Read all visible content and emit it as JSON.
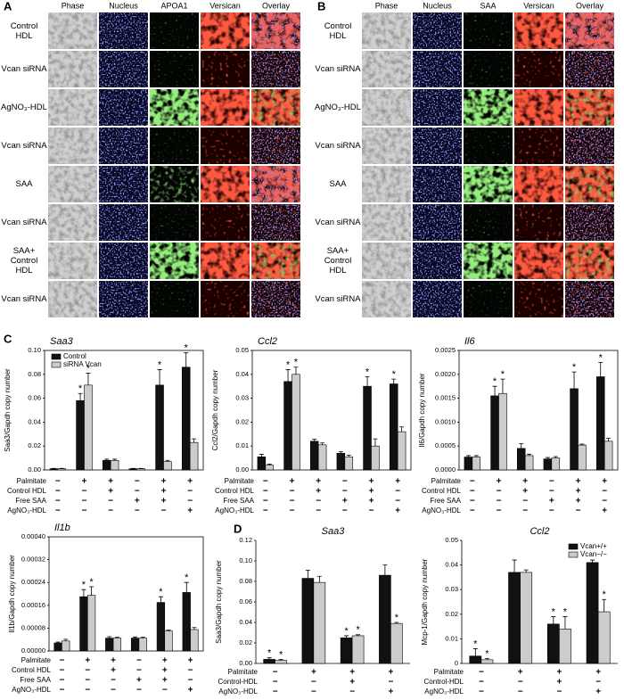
{
  "panels": [
    {
      "label": "A",
      "columns": [
        "Phase",
        "Nucleus",
        "APOA1",
        "Versican",
        "Overlay"
      ],
      "rows": [
        "Control HDL",
        "Vcan siRNA",
        "AgNO₃-HDL",
        "Vcan siRNA",
        "SAA",
        "Vcan siRNA",
        "SAA+ Control HDL",
        "Vcan siRNA"
      ]
    },
    {
      "label": "B",
      "columns": [
        "Phase",
        "Nucleus",
        "SAA",
        "Versican",
        "Overlay"
      ],
      "rows": [
        "Control HDL",
        "Vcan siRNA",
        "AgNO₃-HDL",
        "Vcan siRNA",
        "SAA",
        "Vcan siRNA",
        "SAA+ Control HDL",
        "Vcan siRNA"
      ]
    }
  ],
  "chart_data": [
    {
      "type": "bar",
      "panel": "C",
      "title": "Saa3",
      "ylabel": "Saa3/Gapdh copy number",
      "ylim": [
        0,
        0.1
      ],
      "yticks": [
        {
          "value": 0,
          "label": "0.00"
        },
        0.02,
        0.04,
        0.06,
        0.08,
        {
          "value": 0.1,
          "label": "0.10"
        }
      ],
      "legend": "upper-left",
      "series": [
        {
          "name": "Control",
          "color": "#111111",
          "values": [
            0.001,
            0.058,
            0.008,
            0.001,
            0.071,
            0.086
          ],
          "errors": [
            0.0003,
            0.006,
            0.001,
            0.0003,
            0.013,
            0.012
          ],
          "significance": [
            null,
            "*",
            null,
            null,
            "*",
            "*"
          ]
        },
        {
          "name": "siRNA Vcan",
          "color": "#cccccc",
          "values": [
            0.001,
            0.071,
            0.008,
            0.001,
            0.007,
            0.023
          ],
          "errors": [
            0.0003,
            0.01,
            0.001,
            0.0003,
            0.001,
            0.003
          ],
          "significance": [
            null,
            "*",
            null,
            null,
            null,
            null
          ]
        }
      ],
      "conditions": [
        {
          "name": "Palmitate",
          "marks": [
            "−",
            "+",
            "+",
            "−",
            "+",
            "+"
          ]
        },
        {
          "name": "Control HDL",
          "marks": [
            "−",
            "−",
            "+",
            "−",
            "+",
            "−"
          ]
        },
        {
          "name": "Free SAA",
          "marks": [
            "−",
            "−",
            "−",
            "+",
            "+",
            "−"
          ]
        },
        {
          "name": "AgNO₃-HDL",
          "marks": [
            "−",
            "−",
            "−",
            "−",
            "−",
            "+"
          ]
        }
      ]
    },
    {
      "type": "bar",
      "title": "Ccl2",
      "ylabel": "Ccl2/Gapdh copy number",
      "ylim": [
        0,
        0.05
      ],
      "yticks": [
        {
          "value": 0,
          "label": "0.00"
        },
        0.01,
        0.02,
        0.03,
        0.04,
        0.05
      ],
      "series": [
        {
          "name": "Control",
          "color": "#111111",
          "values": [
            0.0055,
            0.037,
            0.012,
            0.007,
            0.035,
            0.036
          ],
          "errors": [
            0.001,
            0.005,
            0.0008,
            0.0006,
            0.004,
            0.002
          ],
          "significance": [
            null,
            "*",
            null,
            null,
            "*",
            "*"
          ]
        },
        {
          "name": "siRNA Vcan",
          "color": "#cccccc",
          "values": [
            0.002,
            0.04,
            0.0105,
            0.0055,
            0.01,
            0.016
          ],
          "errors": [
            0.0004,
            0.003,
            0.0008,
            0.0007,
            0.003,
            0.002
          ],
          "significance": [
            null,
            "*",
            null,
            null,
            null,
            null
          ]
        }
      ],
      "conditions": [
        {
          "name": "Palmitate",
          "marks": [
            "−",
            "+",
            "+",
            "−",
            "+",
            "+"
          ]
        },
        {
          "name": "Control HDL",
          "marks": [
            "−",
            "−",
            "+",
            "−",
            "+",
            "−"
          ]
        },
        {
          "name": "Free SAA",
          "marks": [
            "−",
            "−",
            "−",
            "+",
            "+",
            "−"
          ]
        },
        {
          "name": "AgNO₃-HDL",
          "marks": [
            "−",
            "−",
            "−",
            "−",
            "−",
            "+"
          ]
        }
      ]
    },
    {
      "type": "bar",
      "title": "Il6",
      "ylabel": "Il6/Gapdh copy number",
      "ylim": [
        0,
        0.0025
      ],
      "yticks": [
        {
          "value": 0,
          "label": "0.0000"
        },
        0.0005,
        {
          "value": 0.001,
          "label": "0.0010"
        },
        0.0015,
        {
          "value": 0.002,
          "label": "0.0020"
        },
        0.0025
      ],
      "series": [
        {
          "name": "Control",
          "color": "#111111",
          "values": [
            0.00027,
            0.00155,
            0.00045,
            0.00023,
            0.0017,
            0.00195
          ],
          "errors": [
            3e-05,
            0.0002,
            0.0001,
            3e-05,
            0.00035,
            0.0003
          ],
          "significance": [
            null,
            "*",
            null,
            null,
            "*",
            "*"
          ]
        },
        {
          "name": "siRNA Vcan",
          "color": "#cccccc",
          "values": [
            0.00027,
            0.0016,
            0.0003,
            0.00025,
            0.00052,
            0.0006
          ],
          "errors": [
            3e-05,
            0.0003,
            3e-05,
            3e-05,
            2e-05,
            6e-05
          ],
          "significance": [
            null,
            "*",
            null,
            null,
            null,
            null
          ]
        }
      ],
      "conditions": [
        {
          "name": "Palmitate",
          "marks": [
            "−",
            "+",
            "+",
            "−",
            "+",
            "+"
          ]
        },
        {
          "name": "Control HDL",
          "marks": [
            "−",
            "−",
            "+",
            "−",
            "+",
            "−"
          ]
        },
        {
          "name": "Free SAA",
          "marks": [
            "−",
            "−",
            "−",
            "+",
            "+",
            "−"
          ]
        },
        {
          "name": "AgNO₃-HDL",
          "marks": [
            "−",
            "−",
            "−",
            "−",
            "−",
            "+"
          ]
        }
      ]
    },
    {
      "type": "bar",
      "title": "Il1b",
      "ylabel": "Il1b/Gapdh copy number",
      "ylim": [
        0,
        0.0004
      ],
      "yticks": [
        {
          "value": 0,
          "label": "0.00000"
        },
        8e-05,
        0.00016,
        0.00024,
        0.00032,
        {
          "value": 0.0004,
          "label": "0.00040"
        }
      ],
      "series": [
        {
          "name": "Control",
          "color": "#111111",
          "values": [
            2.8e-05,
            0.00019,
            4.5e-05,
            4.5e-05,
            0.00017,
            0.000205
          ],
          "errors": [
            3e-06,
            2.5e-05,
            5e-06,
            4e-06,
            2e-05,
            3.5e-05
          ],
          "significance": [
            null,
            "*",
            null,
            null,
            "*",
            "*"
          ]
        },
        {
          "name": "siRNA Vcan",
          "color": "#cccccc",
          "values": [
            3.5e-05,
            0.000195,
            4.5e-05,
            4.5e-05,
            7e-05,
            7.5e-05
          ],
          "errors": [
            6e-06,
            3e-05,
            3e-06,
            3e-06,
            3e-06,
            7e-06
          ],
          "significance": [
            null,
            "*",
            null,
            null,
            null,
            null
          ]
        }
      ],
      "conditions": [
        {
          "name": "Palmitate",
          "marks": [
            "−",
            "+",
            "+",
            "−",
            "+",
            "+"
          ]
        },
        {
          "name": "Control HDL",
          "marks": [
            "−",
            "−",
            "+",
            "−",
            "+",
            "−"
          ]
        },
        {
          "name": "Free SAA",
          "marks": [
            "−",
            "−",
            "−",
            "+",
            "+",
            "−"
          ]
        },
        {
          "name": "AgNO₃-HDL",
          "marks": [
            "−",
            "−",
            "−",
            "−",
            "−",
            "+"
          ]
        }
      ]
    },
    {
      "type": "bar",
      "panel": "D",
      "title": "Saa3",
      "ylabel": "Saa3/Gapdh copy number",
      "ylim": [
        0,
        0.12
      ],
      "yticks": [
        {
          "value": 0,
          "label": "0.00"
        },
        0.02,
        0.04,
        0.06,
        0.08,
        {
          "value": 0.1,
          "label": "0.10"
        },
        0.12
      ],
      "series": [
        {
          "name": "Vcan+/+",
          "color": "#111111",
          "values": [
            0.004,
            0.083,
            0.025,
            0.086
          ],
          "errors": [
            0.0015,
            0.008,
            0.002,
            0.01
          ],
          "significance": [
            "*",
            null,
            "*",
            null
          ]
        },
        {
          "name": "Vcan−/−",
          "color": "#cccccc",
          "values": [
            0.003,
            0.079,
            0.027,
            0.039
          ],
          "errors": [
            0.001,
            0.006,
            0.001,
            0.001
          ],
          "significance": [
            "*",
            null,
            "*",
            "*"
          ]
        }
      ],
      "conditions": [
        {
          "name": "Palmitate",
          "marks": [
            "−",
            "+",
            "+",
            "+"
          ]
        },
        {
          "name": "Control-HDL",
          "marks": [
            "−",
            "−",
            "+",
            "−"
          ]
        },
        {
          "name": "AgNO₃-HDL",
          "marks": [
            "−",
            "−",
            "−",
            "+"
          ]
        }
      ]
    },
    {
      "type": "bar",
      "title": "Ccl2",
      "ylabel": "Mcp-1/Gapdh copy number",
      "ylim": [
        0,
        0.05
      ],
      "yticks": [
        0,
        0.01,
        0.02,
        0.03,
        0.04,
        0.05
      ],
      "legend": "upper-right",
      "series": [
        {
          "name": "Vcan+/+",
          "color": "#111111",
          "values": [
            0.003,
            0.037,
            0.016,
            0.041
          ],
          "errors": [
            0.003,
            0.005,
            0.003,
            0.001
          ],
          "significance": [
            "*",
            null,
            "*",
            null
          ]
        },
        {
          "name": "Vcan−/−",
          "color": "#cccccc",
          "values": [
            0.0015,
            0.037,
            0.014,
            0.021
          ],
          "errors": [
            0.0005,
            0.001,
            0.005,
            0.005
          ],
          "significance": [
            "*",
            null,
            "*",
            "*"
          ]
        }
      ],
      "conditions": [
        {
          "name": "Palmitate",
          "marks": [
            "−",
            "+",
            "+",
            "+"
          ]
        },
        {
          "name": "Control-HDL",
          "marks": [
            "−",
            "−",
            "+",
            "−"
          ]
        },
        {
          "name": "AgNO₃-HDL",
          "marks": [
            "−",
            "−",
            "−",
            "+"
          ]
        }
      ]
    }
  ]
}
